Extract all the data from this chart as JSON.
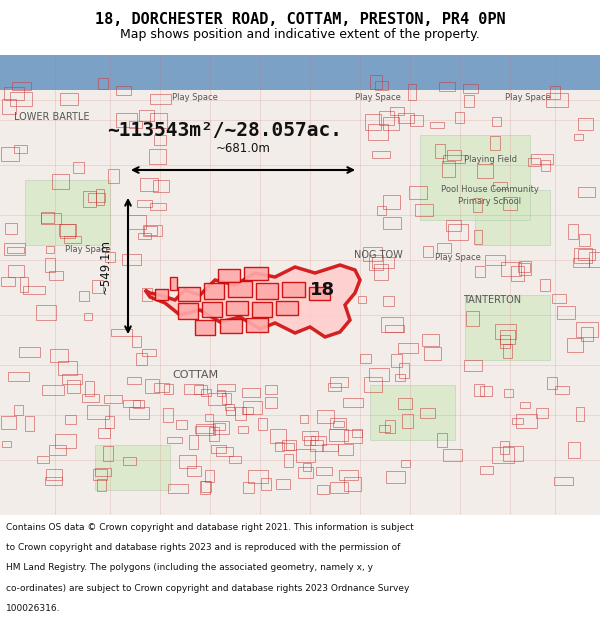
{
  "title_line1": "18, DORCHESTER ROAD, COTTAM, PRESTON, PR4 0PN",
  "title_line2": "Map shows position and indicative extent of the property.",
  "area_text": "~113543m²/~28.057ac.",
  "dim_vertical": "~549.1m",
  "dim_horizontal": "~681.0m",
  "label_18": "18",
  "footer_lines": [
    "Contains OS data © Crown copyright and database right 2021. This information is subject",
    "to Crown copyright and database rights 2023 and is reproduced with the permission of",
    "HM Land Registry. The polygons (including the associated geometry, namely x, y",
    "co-ordinates) are subject to Crown copyright and database rights 2023 Ordnance Survey",
    "100026316."
  ],
  "map_bg_color": "#f2ede8",
  "highlight_color": "#cc0000",
  "title_bg_color": "#ffffff",
  "footer_bg_color": "#ffffff",
  "fig_width": 6.0,
  "fig_height": 6.25
}
